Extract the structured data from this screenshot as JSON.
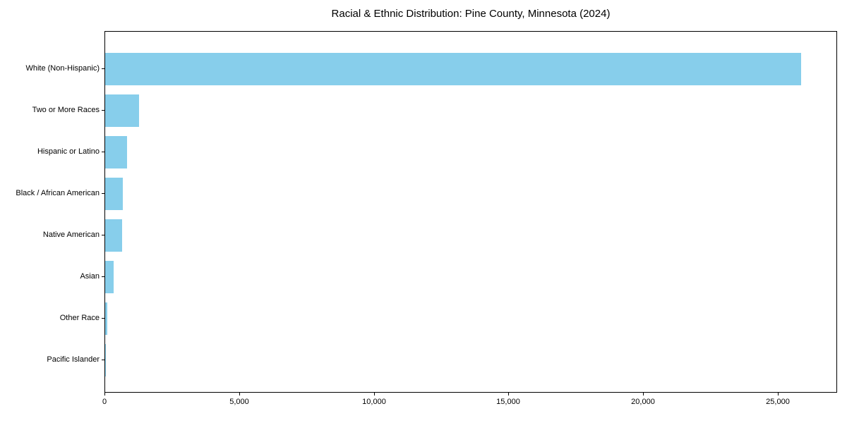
{
  "figure": {
    "background": "#ffffff"
  },
  "chart_data": {
    "type": "bar",
    "orientation": "horizontal",
    "title": "Racial & Ethnic Distribution: Pine County, Minnesota (2024)",
    "categories": [
      "White (Non-Hispanic)",
      "Two or More Races",
      "Hispanic or Latino",
      "Black / African American",
      "Native American",
      "Asian",
      "Other Race",
      "Pacific Islander"
    ],
    "values": [
      25890,
      1250,
      810,
      660,
      630,
      310,
      90,
      10
    ],
    "xlabel": "",
    "ylabel": "",
    "xlim": [
      0,
      27200
    ],
    "x_ticks": [
      0,
      5000,
      10000,
      15000,
      20000,
      25000
    ],
    "x_tick_labels": [
      "0",
      "5,000",
      "10,000",
      "15,000",
      "20,000",
      "25,000"
    ],
    "bar_color": "#87CEEB",
    "axis_color": "#000000",
    "text_color": "#000000",
    "grid": false,
    "legend": null
  }
}
